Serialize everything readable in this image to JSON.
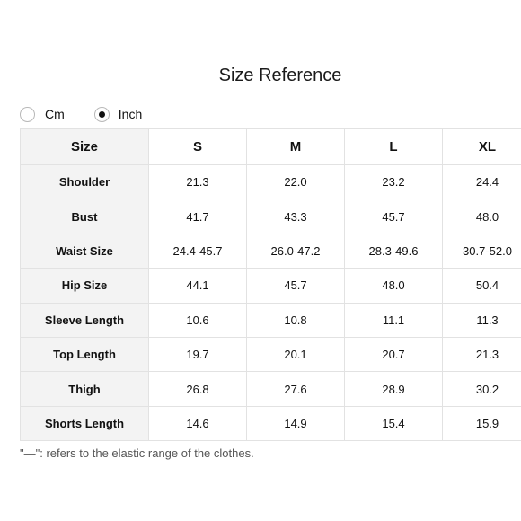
{
  "title": "Size Reference",
  "units": {
    "options": [
      {
        "label": "Cm",
        "selected": false
      },
      {
        "label": "Inch",
        "selected": true
      }
    ]
  },
  "table": {
    "header": [
      "Size",
      "S",
      "M",
      "L",
      "XL"
    ],
    "rows": [
      {
        "label": "Shoulder",
        "values": [
          "21.3",
          "22.0",
          "23.2",
          "24.4"
        ]
      },
      {
        "label": "Bust",
        "values": [
          "41.7",
          "43.3",
          "45.7",
          "48.0"
        ]
      },
      {
        "label": "Waist Size",
        "values": [
          "24.4-45.7",
          "26.0-47.2",
          "28.3-49.6",
          "30.7-52.0"
        ]
      },
      {
        "label": "Hip Size",
        "values": [
          "44.1",
          "45.7",
          "48.0",
          "50.4"
        ]
      },
      {
        "label": "Sleeve Length",
        "values": [
          "10.6",
          "10.8",
          "11.1",
          "11.3"
        ]
      },
      {
        "label": "Top Length",
        "values": [
          "19.7",
          "20.1",
          "20.7",
          "21.3"
        ]
      },
      {
        "label": "Thigh",
        "values": [
          "26.8",
          "27.6",
          "28.9",
          "30.2"
        ]
      },
      {
        "label": "Shorts Length",
        "values": [
          "14.6",
          "14.9",
          "15.4",
          "15.9"
        ]
      }
    ]
  },
  "footnote": "\"—\": refers to the elastic range of the clothes."
}
